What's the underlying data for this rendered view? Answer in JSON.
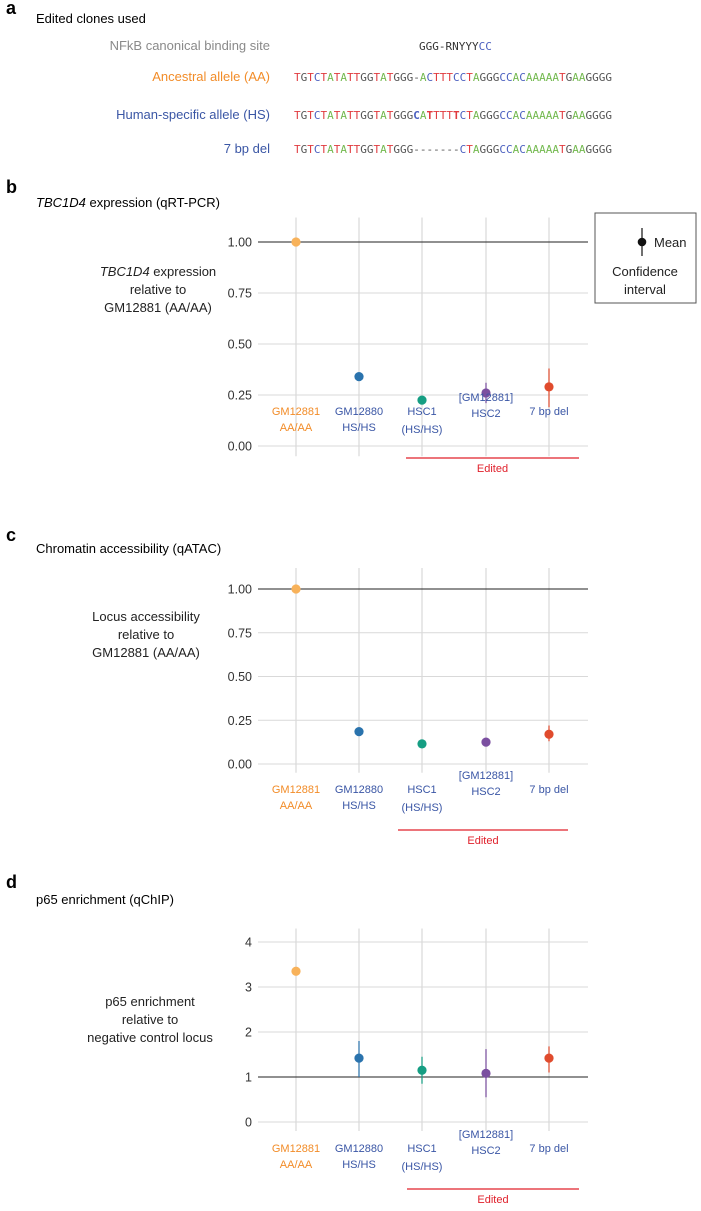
{
  "colors": {
    "orange": "#f28c28",
    "orange_light": "#f8b25a",
    "blue": "#3a56a5",
    "dot_blue": "#2a73ad",
    "teal": "#159e83",
    "purple": "#7b4fa0",
    "red_orange": "#e04b2d",
    "edited_red": "#e0202b",
    "grid": "#d9d9d9",
    "nt_A": "#73b94f",
    "nt_T": "#e03a3e",
    "nt_G": "#555555",
    "nt_C": "#4a5fbf"
  },
  "panel_a": {
    "letter": "a",
    "title": "Edited clones used",
    "rows": [
      {
        "label": "NFkB canonical binding site",
        "label_color": "#8a8a8a",
        "seq_parts": [
          {
            "t": "GGG-RNYYY",
            "c": "#333333",
            "b": false
          },
          {
            "t": "CC",
            "c": "#4a5fbf",
            "b": false
          }
        ]
      },
      {
        "label": "Ancestral allele (AA)",
        "label_color": "#f28c28",
        "seq": "TGTCTATATTGGTATGGG-ACTTTCCTAGGGCCACAAAAATGAAGGGG",
        "bold_idx": []
      },
      {
        "label": "Human-specific allele (HS)",
        "label_color": "#3a56a5",
        "seq": "TGTCTATATTGGTATGGGCATTTTTCTAGGGCCACAAAAATGAAGGGG",
        "bold_idx": [
          18,
          20,
          24
        ]
      },
      {
        "label": "7 bp del",
        "label_color": "#3a56a5",
        "seq": "TGTCTATATTGGTATGGG-------CTAGGGCCACAAAAATGAAGGGG",
        "bold_idx": []
      }
    ]
  },
  "categories": [
    {
      "line1": "",
      "line2": "GM12881",
      "line3": "AA/AA",
      "line4": "",
      "color": "#f28c28"
    },
    {
      "line1": "",
      "line2": "GM12880",
      "line3": "HS/HS",
      "line4": "",
      "color": "#3a56a5"
    },
    {
      "line1": "",
      "line2": "HSC1",
      "line3": "(HS/HS)",
      "line4": "",
      "color": "#3a56a5"
    },
    {
      "line1": "[GM12881]",
      "line2": "HSC2",
      "line3": "",
      "line4": "",
      "color": "#3a56a5"
    },
    {
      "line1": "",
      "line2": "7 bp del",
      "line3": "",
      "line4": "",
      "color": "#3a56a5"
    }
  ],
  "edited_label": "Edited",
  "legend": {
    "mean": "Mean",
    "ci_line1": "Confidence",
    "ci_line2": "interval"
  },
  "chart_data": [
    {
      "type": "scatter",
      "panel": "b",
      "title": "TBC1D4 expression (qRT-PCR)",
      "ylabel": [
        "TBC1D4 expression",
        "relative to",
        "GM12881 (AA/AA)"
      ],
      "categories": [
        "GM12881 AA/AA",
        "GM12880 HS/HS",
        "HSC1 (HS/HS)",
        "[GM12881] HSC2",
        "7 bp del"
      ],
      "values": [
        1.0,
        0.34,
        0.225,
        0.26,
        0.29
      ],
      "ci_low": [
        1.0,
        0.33,
        0.21,
        0.21,
        0.19
      ],
      "ci_high": [
        1.0,
        0.35,
        0.24,
        0.31,
        0.38
      ],
      "point_colors": [
        "#f8b25a",
        "#2a73ad",
        "#159e83",
        "#7b4fa0",
        "#e04b2d"
      ],
      "ylim": [
        -0.05,
        1.12
      ],
      "yticks": [
        "0.00",
        "0.25",
        "0.50",
        "0.75",
        "1.00"
      ],
      "hline": 1.0,
      "legend": "top-right"
    },
    {
      "type": "scatter",
      "panel": "c",
      "title": "Chromatin accessibility (qATAC)",
      "ylabel": [
        "Locus accessibility",
        "relative to",
        "GM12881 (AA/AA)"
      ],
      "categories": [
        "GM12881 AA/AA",
        "GM12880 HS/HS",
        "HSC1 (HS/HS)",
        "[GM12881] HSC2",
        "7 bp del"
      ],
      "values": [
        1.0,
        0.185,
        0.115,
        0.125,
        0.17
      ],
      "ci_low": [
        1.0,
        0.18,
        0.11,
        0.115,
        0.13
      ],
      "ci_high": [
        1.0,
        0.19,
        0.12,
        0.135,
        0.22
      ],
      "point_colors": [
        "#f8b25a",
        "#2a73ad",
        "#159e83",
        "#7b4fa0",
        "#e04b2d"
      ],
      "ylim": [
        -0.05,
        1.12
      ],
      "yticks": [
        "0.00",
        "0.25",
        "0.50",
        "0.75",
        "1.00"
      ],
      "hline": 1.0
    },
    {
      "type": "scatter",
      "panel": "d",
      "title": "p65 enrichment (qChIP)",
      "ylabel": [
        "p65 enrichment",
        "relative to",
        "negative control locus"
      ],
      "categories": [
        "GM12881 AA/AA",
        "GM12880 HS/HS",
        "HSC1 (HS/HS)",
        "[GM12881] HSC2",
        "7 bp del"
      ],
      "values": [
        3.35,
        1.42,
        1.15,
        1.08,
        1.42
      ],
      "ci_low": [
        3.35,
        1.0,
        0.85,
        0.55,
        1.1
      ],
      "ci_high": [
        3.35,
        1.8,
        1.45,
        1.62,
        1.68
      ],
      "point_colors": [
        "#f8b25a",
        "#2a73ad",
        "#159e83",
        "#7b4fa0",
        "#e04b2d"
      ],
      "ylim": [
        -0.2,
        4.3
      ],
      "yticks": [
        "0",
        "1",
        "2",
        "3",
        "4"
      ],
      "hline": 1.0
    }
  ]
}
